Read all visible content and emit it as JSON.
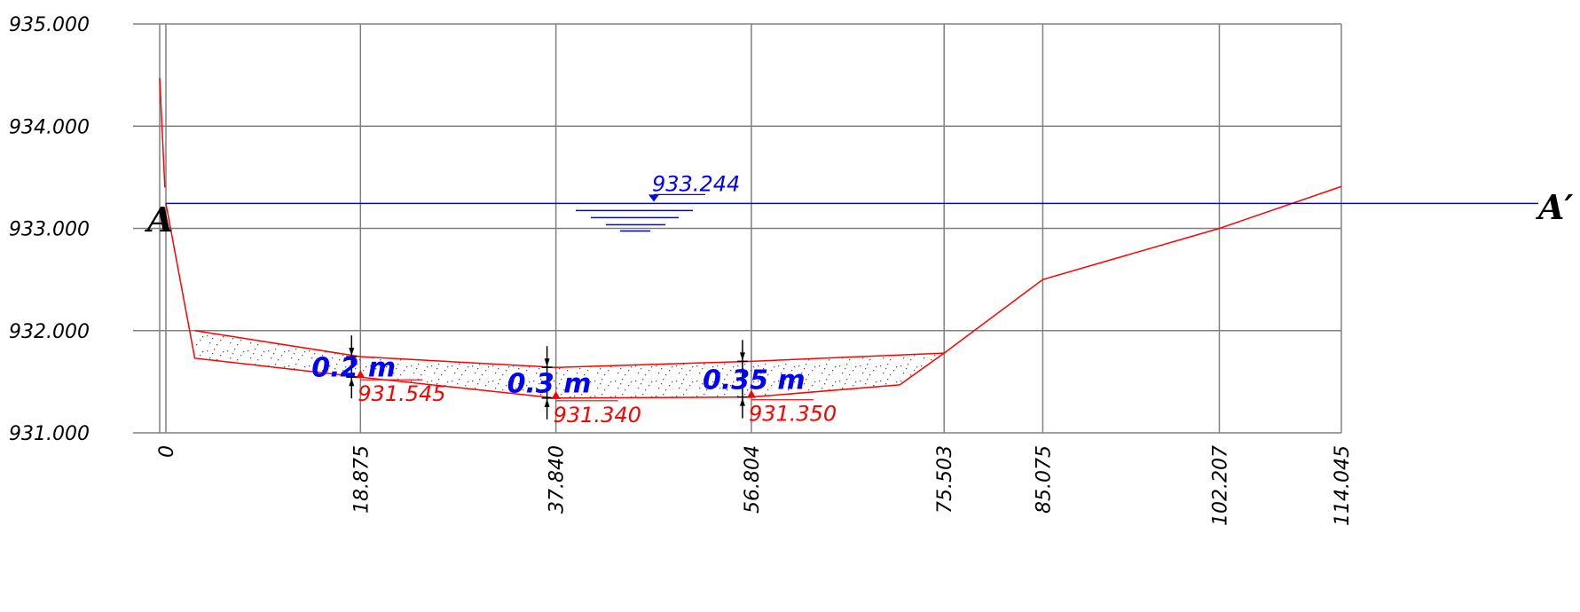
{
  "y_axis": {
    "min": 931.0,
    "max": 935.0,
    "tick_values": [
      931,
      932,
      933,
      934,
      935
    ],
    "tick_labels": [
      "931.000",
      "932.000",
      "933.000",
      "934.000",
      "935.000"
    ]
  },
  "x_axis": {
    "min": 0,
    "max": 114.045,
    "tick_values": [
      0,
      18.875,
      37.84,
      56.804,
      75.503,
      85.075,
      102.207,
      114.045
    ],
    "tick_labels": [
      "0",
      "18.875",
      "37.840",
      "56.804",
      "75.503",
      "85.075",
      "102.207",
      "114.045"
    ]
  },
  "section": {
    "left_label": "A",
    "right_label": "A′"
  },
  "water_level": {
    "value": 933.244,
    "label": "933.244",
    "color": "#0000ff"
  },
  "ground_profile": {
    "color": "#ff0000",
    "points": [
      [
        -0.6,
        934.47
      ],
      [
        -0.1,
        933.4
      ]
    ],
    "main": [
      [
        0,
        933.244
      ],
      [
        2.8,
        931.73
      ],
      [
        18.875,
        931.545
      ],
      [
        37.84,
        931.34
      ],
      [
        56.804,
        931.35
      ],
      [
        71.2,
        931.47
      ],
      [
        75.503,
        931.78
      ],
      [
        85.075,
        932.5
      ],
      [
        102.207,
        933.0
      ],
      [
        114.045,
        933.41
      ]
    ]
  },
  "top_line": {
    "points": [
      [
        2.8,
        932.0
      ],
      [
        18.875,
        931.745
      ],
      [
        37.84,
        931.64
      ],
      [
        56.804,
        931.7
      ],
      [
        75.503,
        931.78
      ]
    ]
  },
  "measurements": [
    {
      "x": 18.875,
      "bottom": 931.545,
      "thickness_label": "0.2 m",
      "elevation_label": "931.545"
    },
    {
      "x": 37.84,
      "bottom": 931.34,
      "thickness_label": "0.3 m",
      "elevation_label": "931.340"
    },
    {
      "x": 56.804,
      "bottom": 931.35,
      "thickness_label": "0.35 m",
      "elevation_label": "931.350"
    }
  ],
  "colors": {
    "grid": "#808080",
    "profile": "#ff0000",
    "water": "#0000ff",
    "annotation": "#0000ff"
  }
}
